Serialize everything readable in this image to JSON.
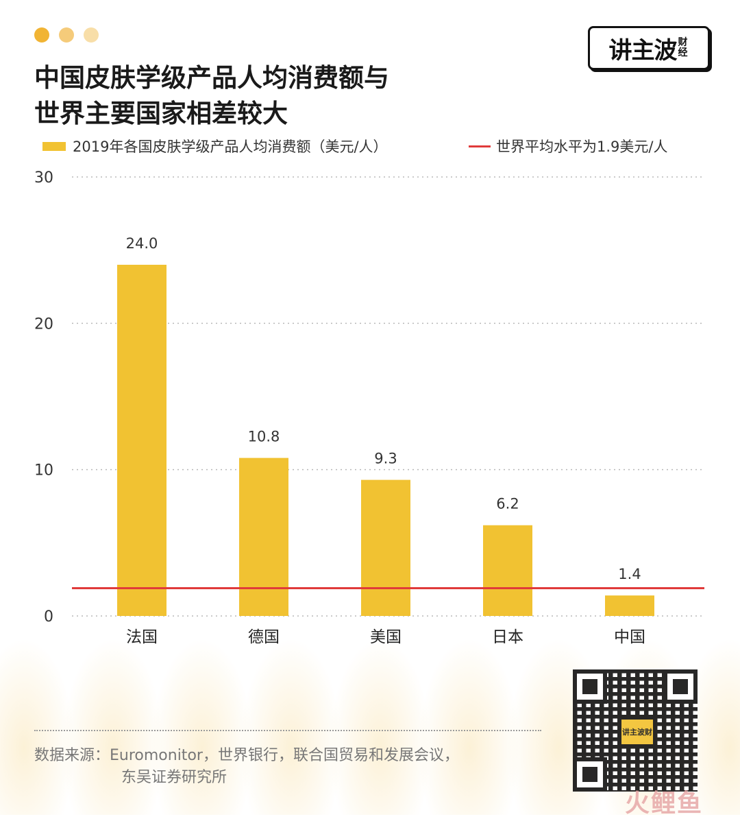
{
  "colors": {
    "bar": "#F1C232",
    "average_line": "#E03A3A",
    "dot1": "#F1B434",
    "dot2": "#F5CB7A",
    "dot3": "#F8DEA8"
  },
  "logo": {
    "main": "讲主波",
    "sub": "财经"
  },
  "title": {
    "line1": "中国皮肤学级产品人均消费额与",
    "line2": "世界主要国家相差较大"
  },
  "legend": {
    "bars_label": "2019年各国皮肤学级产品人均消费额（美元/人）",
    "line_label": "世界平均水平为1.9美元/人"
  },
  "chart_data": {
    "type": "bar",
    "categories": [
      "法国",
      "德国",
      "美国",
      "日本",
      "中国"
    ],
    "values": [
      24.0,
      10.8,
      9.3,
      6.2,
      1.4
    ],
    "value_labels": [
      "24.0",
      "10.8",
      "9.3",
      "6.2",
      "1.4"
    ],
    "ylim": [
      0,
      30
    ],
    "y_ticks": [
      0,
      10,
      20,
      30
    ],
    "reference_line": {
      "value": 1.9
    },
    "grid": "dotted horizontal"
  },
  "source": {
    "line1": "数据来源：Euromonitor，世界银行，联合国贸易和发展会议，",
    "line2": "东吴证券研究所"
  },
  "qr": {
    "center_label": "讲主波财"
  },
  "watermark": "火鲤鱼"
}
